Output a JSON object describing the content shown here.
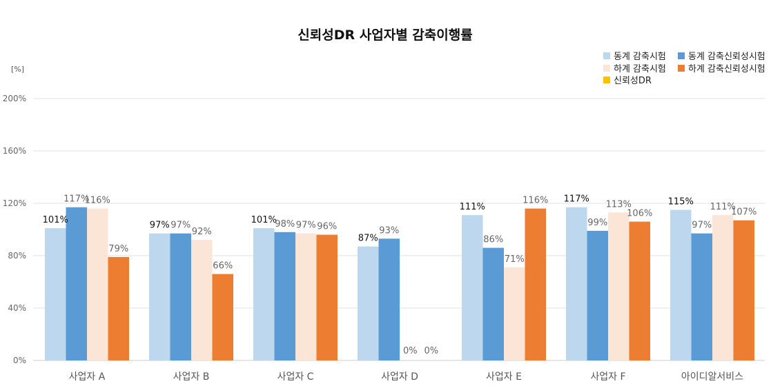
{
  "chart_data": {
    "type": "bar",
    "title": "신뢰성DR 사업자별 감축이행률",
    "unit_label": "[%]",
    "ylim": [
      0,
      200
    ],
    "yticks": [
      "0%",
      "40%",
      "80%",
      "120%",
      "160%",
      "200%"
    ],
    "ytick_values": [
      0,
      40,
      80,
      120,
      160,
      200
    ],
    "grid": true,
    "legend_position": "top-right",
    "categories": [
      "사업자 A",
      "사업자 B",
      "사업자 C",
      "사업자 D",
      "사업자 E",
      "사업자 F",
      "아이디알서비스"
    ],
    "series": [
      {
        "name": "동계 감축시험",
        "color": "#BDD7EE",
        "label_color": "#111111",
        "values": [
          101,
          97,
          101,
          87,
          111,
          117,
          115
        ],
        "labels": [
          "101%",
          "97%",
          "101%",
          "87%",
          "111%",
          "117%",
          "115%"
        ]
      },
      {
        "name": "동계 감축신뢰성시험",
        "color": "#5B9BD5",
        "label_color": "#666666",
        "values": [
          117,
          97,
          98,
          93,
          86,
          99,
          97
        ],
        "labels": [
          "117%",
          "97%",
          "98%",
          "93%",
          "86%",
          "99%",
          "97%"
        ]
      },
      {
        "name": "하계 감축시험",
        "color": "#FBE5D6",
        "label_color": "#666666",
        "values": [
          116,
          92,
          97,
          0,
          71,
          113,
          111
        ],
        "labels": [
          "116%",
          "92%",
          "97%",
          "0%",
          "71%",
          "113%",
          "111%"
        ]
      },
      {
        "name": "하계 감축신뢰성시험",
        "color": "#ED7D31",
        "label_color": "#666666",
        "values": [
          79,
          66,
          96,
          0,
          116,
          106,
          107
        ],
        "labels": [
          "79%",
          "66%",
          "96%",
          "0%",
          "116%",
          "106%",
          "107%"
        ]
      },
      {
        "name": "신뢰성DR",
        "color": "#FFC000",
        "label_color": "#666666",
        "values": [
          null,
          null,
          null,
          null,
          null,
          null,
          null
        ],
        "labels": []
      }
    ]
  }
}
